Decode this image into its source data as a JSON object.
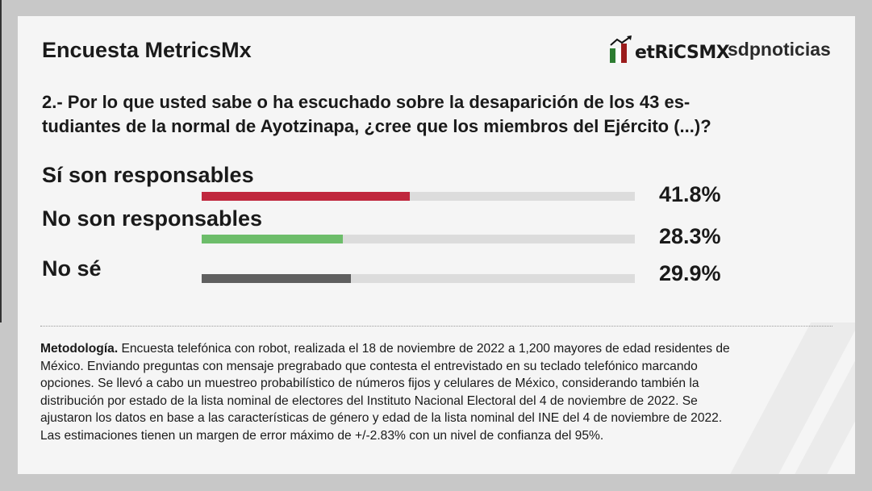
{
  "header": {
    "title": "Encuesta MetricsMx",
    "logo_metrics": "etRiCSMX",
    "logo_sdp": "sdpnoticias"
  },
  "question": {
    "line1": "2.- Por lo que usted sabe o ha escuchado sobre la desaparición de los 43 es-",
    "line2": "tudiantes de la normal de Ayotzinapa, ¿cree que los miembros del Ejército (...)?"
  },
  "chart_data": {
    "type": "bar",
    "categories": [
      "Sí son responsables",
      "No son responsables",
      "No sé"
    ],
    "values": [
      41.8,
      28.3,
      29.9
    ],
    "labels": [
      "41.8%",
      "28.3%",
      "29.9%"
    ],
    "colors": [
      "#c0283e",
      "#6dbd6a",
      "#5f5f5f"
    ],
    "track_color": "#dcdcdc",
    "title": "Encuesta MetricsMx",
    "xlabel": "",
    "ylabel": "",
    "ylim": [
      0,
      100
    ]
  },
  "methodology": {
    "bold": "Metodología.",
    "lines": [
      " Encuesta telefónica con robot, realizada el 18 de noviembre de 2022 a 1,200 mayores de edad residentes de",
      "México. Enviando preguntas con mensaje pregrabado que contesta el entrevistado en su teclado telefónico marcando",
      "opciones. Se llevó a cabo un muestreo probabilístico de números fijos y celulares de México, considerando también la",
      "distribución por estado de la lista nominal de electores del Instituto Nacional Electoral del 4 de noviembre de 2022. Se",
      "ajustaron los datos en base a las características de género y edad de la lista nominal del INE del 4 de noviembre de 2022.",
      "Las estimaciones tienen un margen de error máximo de +/-2.83% con un nivel de confianza del 95%."
    ]
  }
}
